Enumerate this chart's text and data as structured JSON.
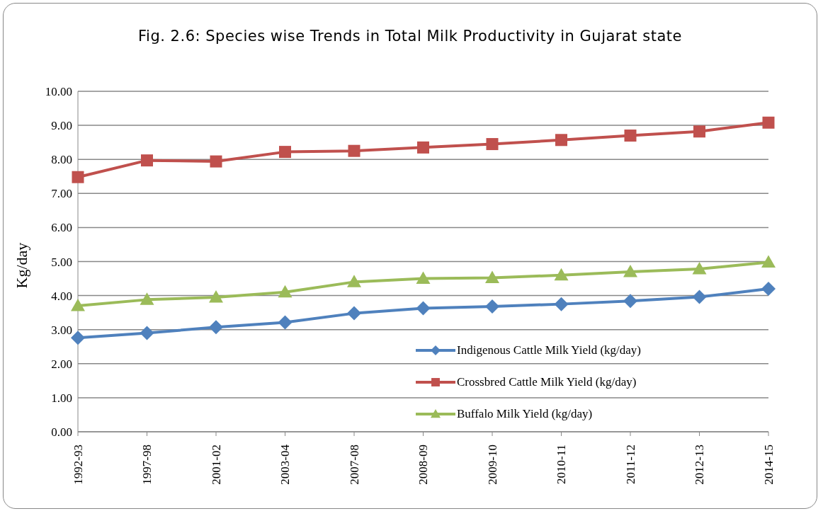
{
  "chart_data": {
    "type": "line",
    "title": "Fig. 2.6: Species wise Trends in Total Milk Productivity in Gujarat state",
    "ylabel": "Kg/day",
    "categories": [
      "1992-93",
      "1997-98",
      "2001-02",
      "2003-04",
      "2007-08",
      "2008-09",
      "2009-10",
      "2010-11",
      "2011-12",
      "2012-13",
      "2014-15"
    ],
    "series": [
      {
        "name": "Indigenous Cattle Milk Yield (kg/day)",
        "color": "#4f81bd",
        "marker": "diamond",
        "values": [
          2.76,
          2.9,
          3.07,
          3.21,
          3.48,
          3.63,
          3.68,
          3.75,
          3.84,
          3.96,
          4.2
        ]
      },
      {
        "name": "Crossbred Cattle Milk Yield (kg/day)",
        "color": "#c0504d",
        "marker": "square",
        "values": [
          7.48,
          7.97,
          7.94,
          8.22,
          8.25,
          8.35,
          8.45,
          8.57,
          8.7,
          8.82,
          9.08
        ]
      },
      {
        "name": "Buffalo Milk Yield (kg/day)",
        "color": "#9bbb59",
        "marker": "triangle",
        "values": [
          3.7,
          3.88,
          3.95,
          4.1,
          4.4,
          4.5,
          4.52,
          4.6,
          4.7,
          4.78,
          4.98
        ]
      }
    ],
    "ylim": [
      0,
      10
    ],
    "yticks": [
      {
        "value": 0,
        "label": "0.00"
      },
      {
        "value": 1,
        "label": "1.00"
      },
      {
        "value": 2,
        "label": "2.00"
      },
      {
        "value": 3,
        "label": "3.00"
      },
      {
        "value": 4,
        "label": "4.00"
      },
      {
        "value": 5,
        "label": "5.00"
      },
      {
        "value": 6,
        "label": "6.00"
      },
      {
        "value": 7,
        "label": "7.00"
      },
      {
        "value": 8,
        "label": "8.00"
      },
      {
        "value": 9,
        "label": "9.00"
      },
      {
        "value": 10,
        "label": "10.00"
      }
    ],
    "grid": "y",
    "legend": "bottom right"
  }
}
